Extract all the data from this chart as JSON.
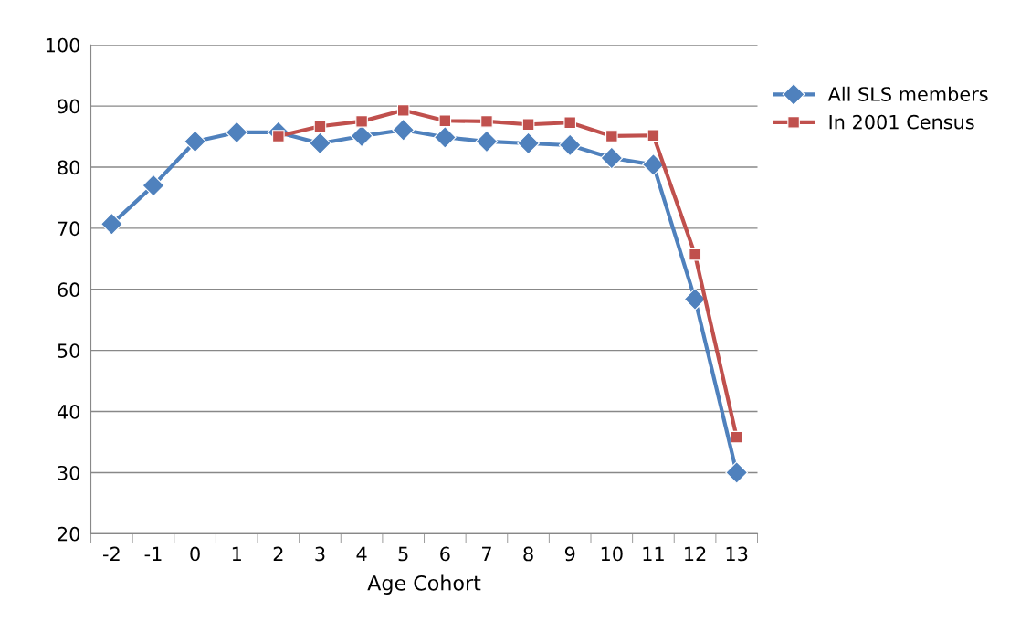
{
  "chart_data": {
    "type": "line",
    "xlabel": "Age Cohort",
    "categories": [
      "-2",
      "-1",
      "0",
      "1",
      "2",
      "3",
      "4",
      "5",
      "6",
      "7",
      "8",
      "9",
      "10",
      "11",
      "12",
      "13"
    ],
    "series": [
      {
        "name": "All SLS members",
        "color": "#4f81bd",
        "marker": "diamond",
        "values": [
          70.7,
          77.0,
          84.2,
          85.7,
          85.7,
          83.9,
          85.1,
          86.1,
          84.9,
          84.2,
          83.9,
          83.6,
          81.5,
          80.4,
          58.4,
          30.0
        ]
      },
      {
        "name": "In 2001 Census",
        "color": "#c0504d",
        "marker": "square",
        "values": [
          null,
          null,
          null,
          null,
          85.1,
          86.7,
          87.5,
          89.3,
          87.6,
          87.5,
          87.0,
          87.3,
          85.1,
          85.2,
          65.7,
          35.8
        ]
      }
    ],
    "ylim": [
      20,
      100
    ],
    "yticks": [
      20,
      30,
      40,
      50,
      60,
      70,
      80,
      90,
      100
    ],
    "grid": "y",
    "legend": "top right",
    "line_style": "solid"
  }
}
